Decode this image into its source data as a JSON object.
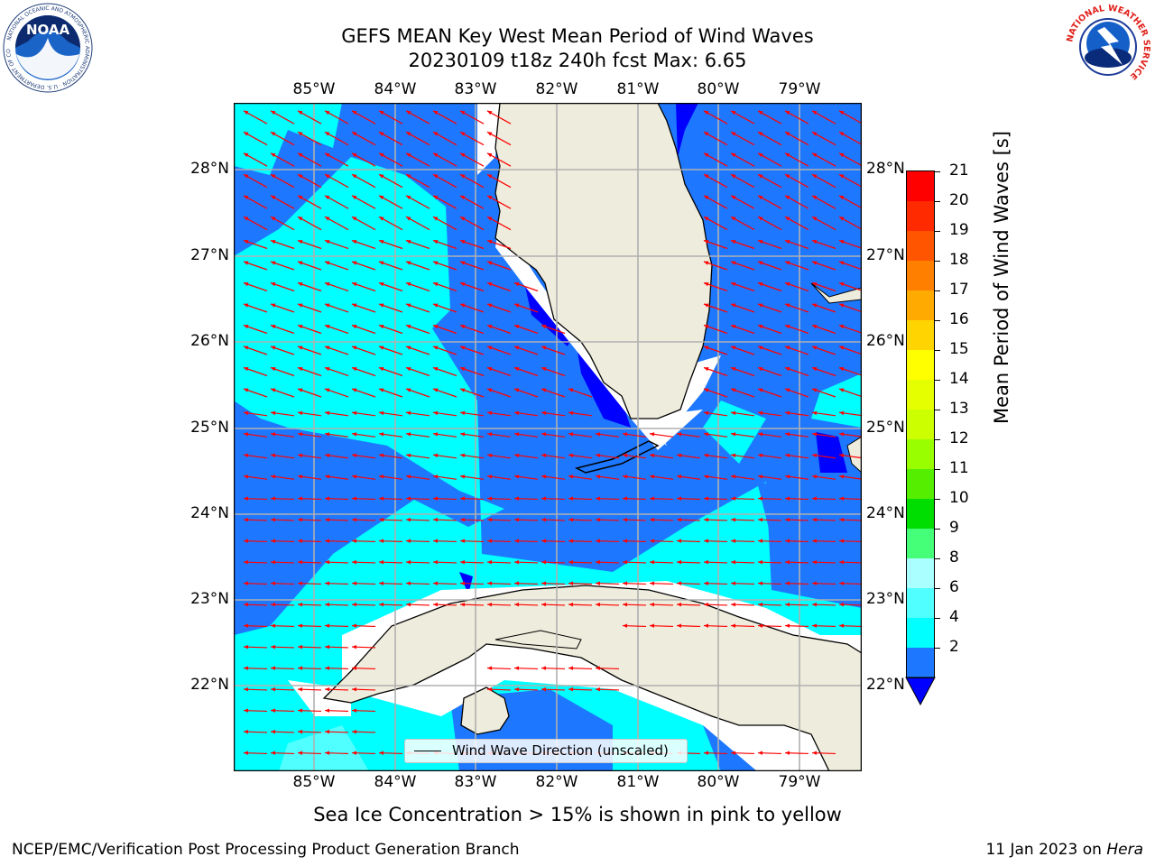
{
  "header": {
    "title_line1": "GEFS MEAN Key West Mean Period of Wind Waves",
    "title_line2": "20230109 t18z 240h fcst   Max: 6.65"
  },
  "logos": {
    "noaa_text": "NOAA",
    "noaa_ring_text": "NATIONAL OCEANIC AND ATMOSPHERIC ADMINISTRATION · U.S. DEPARTMENT OF COMMERCE",
    "nws_ring_text": "NATIONAL WEATHER SERVICE"
  },
  "map": {
    "lon_labels": [
      "85°W",
      "84°W",
      "83°W",
      "82°W",
      "81°W",
      "80°W",
      "79°W"
    ],
    "lat_labels": [
      "28°N",
      "27°N",
      "26°N",
      "25°N",
      "24°N",
      "23°N",
      "22°N"
    ],
    "legend_text": "Wind Wave Direction (unscaled)",
    "arrow_color": "#ff0000",
    "land_color": "#eeecdc",
    "wave_direction": "toward west",
    "period_fill_colors": {
      "below_2": "#0000ff",
      "2_4": "#1e78ff",
      "4_6": "#00ffff",
      "6_8": "#50ffff"
    }
  },
  "colorbar": {
    "label": "Mean Period of Wind Waves [s]",
    "ticks": [
      "21",
      "20",
      "19",
      "18",
      "17",
      "16",
      "15",
      "14",
      "13",
      "12",
      "11",
      "10",
      "9",
      "8",
      "6",
      "4",
      "2"
    ],
    "colors_top_to_bottom": [
      "#ff0000",
      "#ff2a00",
      "#ff5500",
      "#ff7f00",
      "#ffaa00",
      "#ffd400",
      "#ffff00",
      "#e6ff00",
      "#ccff00",
      "#99ff00",
      "#55ee00",
      "#00dd00",
      "#44ff77",
      "#aaffff",
      "#50ffff",
      "#00ffff",
      "#1e78ff"
    ],
    "extend_color": "#0000ff"
  },
  "footer": {
    "note": "Sea Ice Concentration > 15% is shown in pink to yellow",
    "left": "NCEP/EMC/Verification Post Processing Product Generation Branch",
    "right_date": "11 Jan 2023 on ",
    "right_host": "Hera"
  }
}
